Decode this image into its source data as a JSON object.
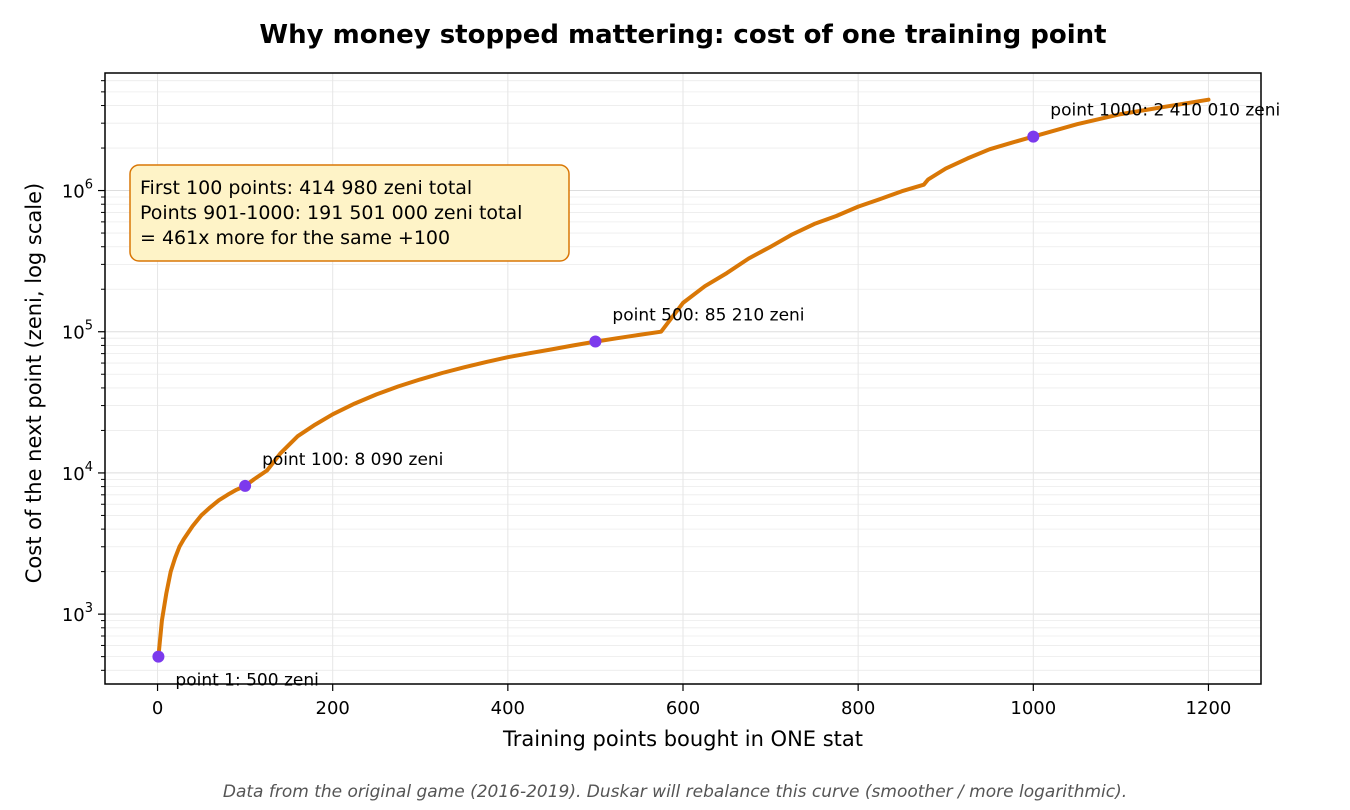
{
  "chart_data": {
    "type": "line",
    "title": "Why money stopped mattering: cost of one training point",
    "xlabel": "Training points bought in ONE stat",
    "ylabel": "Cost of the next point (zeni, log scale)",
    "xlim": [
      -60,
      1260
    ],
    "ylim": [
      320,
      6800000
    ],
    "yscale": "log",
    "grid": true,
    "x_ticks": [
      0,
      200,
      400,
      600,
      800,
      1000,
      1200
    ],
    "y_ticks": [
      {
        "base": "10",
        "exp": "3",
        "value": 1000
      },
      {
        "base": "10",
        "exp": "4",
        "value": 10000
      },
      {
        "base": "10",
        "exp": "5",
        "value": 100000
      },
      {
        "base": "10",
        "exp": "6",
        "value": 1000000
      }
    ],
    "series": [
      {
        "color": "#d97706",
        "x": [
          1,
          5,
          10,
          15,
          20,
          25,
          30,
          40,
          50,
          60,
          70,
          80,
          90,
          100,
          110,
          125,
          140,
          160,
          180,
          200,
          225,
          250,
          275,
          300,
          325,
          350,
          375,
          400,
          425,
          450,
          475,
          500,
          525,
          550,
          575,
          600,
          625,
          650,
          675,
          700,
          725,
          750,
          775,
          800,
          825,
          850,
          875,
          880,
          900,
          925,
          950,
          975,
          1000,
          1050,
          1100,
          1150,
          1200
        ],
        "y": [
          500,
          900,
          1400,
          2000,
          2500,
          3000,
          3400,
          4200,
          5000,
          5700,
          6400,
          7000,
          7600,
          8090,
          9000,
          10400,
          13700,
          18200,
          22000,
          26000,
          31000,
          36000,
          41000,
          46000,
          51000,
          56000,
          61000,
          66000,
          70500,
          75000,
          80000,
          85210,
          90000,
          95000,
          100000,
          160000,
          210000,
          260000,
          330000,
          400000,
          490000,
          580000,
          660000,
          770000,
          870000,
          990000,
          1100000,
          1200000,
          1430000,
          1690000,
          1960000,
          2180000,
          2410010,
          2950000,
          3480000,
          3920000,
          4400000
        ]
      }
    ],
    "markers": {
      "color": "#7c3aed",
      "points": [
        {
          "x": 1,
          "y": 500,
          "label": "point 1: 500 zeni"
        },
        {
          "x": 100,
          "y": 8090,
          "label": "point 100: 8 090 zeni"
        },
        {
          "x": 500,
          "y": 85210,
          "label": "point 500: 85 210 zeni"
        },
        {
          "x": 1000,
          "y": 2410010,
          "label": "point 1000: 2 410 010 zeni"
        }
      ]
    },
    "info_box": {
      "lines": [
        "First 100 points: 414 980 zeni total",
        "Points 901-1000: 191 501 000 zeni total",
        "= 461x more for the same +100"
      ],
      "fill": "#fef3c7",
      "border": "#d97706"
    },
    "footnote": "Data from the original game (2016-2019). Duskar will rebalance this curve (smoother / more logarithmic)."
  }
}
